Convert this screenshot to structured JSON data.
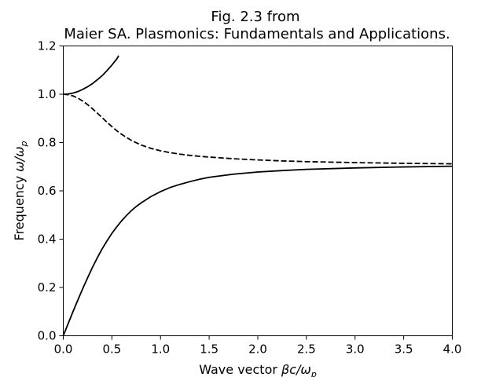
{
  "chart_data": {
    "type": "line",
    "title": [
      "Fig. 2.3 from",
      "Maier SA. Plasmonics: Fundamentals and Applications."
    ],
    "xlabel_main": "Wave vector ",
    "xlabel_math": "βc/ω",
    "xlabel_sub": "p",
    "ylabel_main": "Frequency ",
    "ylabel_math": "ω/ω",
    "ylabel_sub": "p",
    "xlim": [
      0,
      4
    ],
    "ylim": [
      0,
      1.2
    ],
    "xticks": [
      0.0,
      0.5,
      1.0,
      1.5,
      2.0,
      2.5,
      3.0,
      3.5,
      4.0
    ],
    "xtick_labels": [
      "0.0",
      "0.5",
      "1.0",
      "1.5",
      "2.0",
      "2.5",
      "3.0",
      "3.5",
      "4.0"
    ],
    "yticks": [
      0.0,
      0.2,
      0.4,
      0.6,
      0.8,
      1.0,
      1.2
    ],
    "ytick_labels": [
      "0.0",
      "0.2",
      "0.4",
      "0.6",
      "0.8",
      "1.0",
      "1.2"
    ],
    "grid": false,
    "series": [
      {
        "style": "solid",
        "color": "#000000",
        "x": [
          0.0,
          0.05,
          0.1,
          0.15,
          0.2,
          0.25,
          0.3,
          0.35,
          0.4,
          0.45,
          0.5,
          0.55,
          0.6,
          0.65,
          0.7,
          0.75,
          0.8,
          0.9,
          1.0,
          1.1,
          1.2,
          1.3,
          1.4,
          1.5,
          1.75,
          2.0,
          2.25,
          2.5,
          3.0,
          3.5,
          4.0
        ],
        "y": [
          0.0,
          0.05,
          0.1,
          0.148,
          0.195,
          0.24,
          0.283,
          0.323,
          0.36,
          0.393,
          0.424,
          0.451,
          0.476,
          0.498,
          0.518,
          0.535,
          0.55,
          0.576,
          0.597,
          0.614,
          0.627,
          0.638,
          0.648,
          0.656,
          0.669,
          0.678,
          0.684,
          0.689,
          0.695,
          0.699,
          0.702
        ]
      },
      {
        "style": "solid",
        "color": "#000000",
        "x": [
          0.0,
          0.05,
          0.1,
          0.15,
          0.2,
          0.25,
          0.3,
          0.35,
          0.4,
          0.45,
          0.5,
          0.55,
          0.57
        ],
        "y": [
          1.0,
          1.001,
          1.005,
          1.011,
          1.02,
          1.031,
          1.044,
          1.06,
          1.077,
          1.098,
          1.121,
          1.146,
          1.16
        ]
      },
      {
        "style": "dashed",
        "color": "#000000",
        "x": [
          0.0,
          0.05,
          0.1,
          0.15,
          0.2,
          0.25,
          0.3,
          0.35,
          0.4,
          0.45,
          0.5,
          0.55,
          0.6,
          0.7,
          0.8,
          0.9,
          1.0,
          1.1,
          1.2,
          1.3,
          1.4,
          1.5,
          1.75,
          2.0,
          2.25,
          2.5,
          3.0,
          3.5,
          4.0
        ],
        "y": [
          1.0,
          0.998,
          0.993,
          0.984,
          0.972,
          0.957,
          0.94,
          0.922,
          0.903,
          0.884,
          0.866,
          0.849,
          0.834,
          0.809,
          0.79,
          0.776,
          0.766,
          0.758,
          0.752,
          0.747,
          0.743,
          0.74,
          0.733,
          0.728,
          0.724,
          0.721,
          0.717,
          0.714,
          0.712
        ]
      }
    ]
  }
}
